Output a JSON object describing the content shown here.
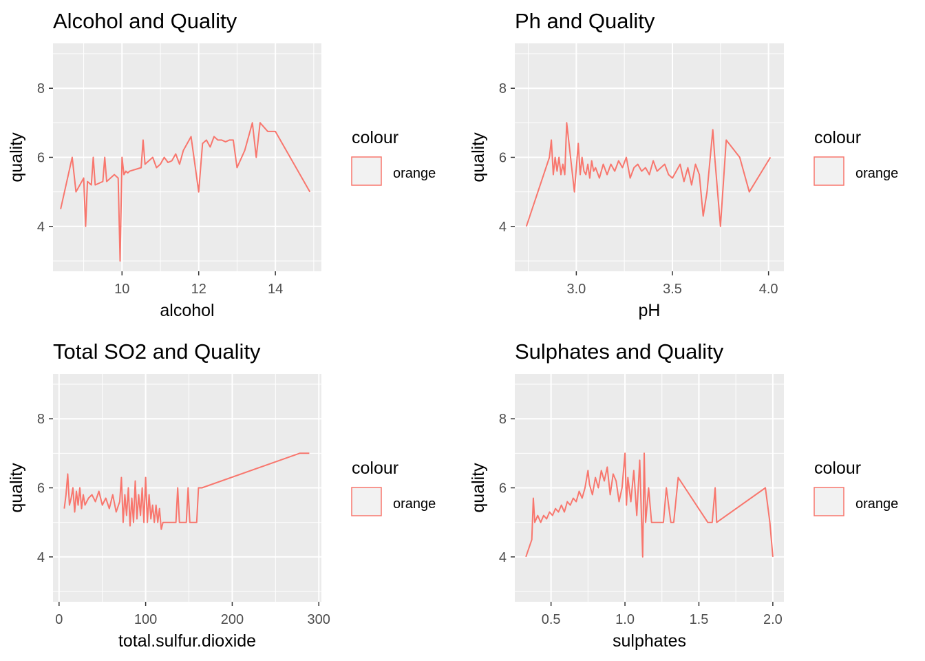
{
  "legend": {
    "title": "colour",
    "label": "orange",
    "line_color": "#F8766D"
  },
  "chart_data": [
    {
      "type": "line",
      "title": "Alcohol and Quality",
      "xlabel": "alcohol",
      "ylabel": "quality",
      "xlim": [
        8.2,
        15.2
      ],
      "ylim": [
        2.7,
        9.3
      ],
      "xticks": [
        10,
        12,
        14
      ],
      "yticks": [
        4,
        6,
        8
      ],
      "x": [
        8.4,
        8.7,
        8.8,
        9.0,
        9.05,
        9.1,
        9.2,
        9.25,
        9.3,
        9.5,
        9.55,
        9.6,
        9.8,
        9.9,
        9.95,
        10.0,
        10.05,
        10.1,
        10.15,
        10.2,
        10.5,
        10.55,
        10.6,
        10.8,
        10.9,
        11.0,
        11.1,
        11.2,
        11.3,
        11.4,
        11.5,
        11.6,
        11.8,
        12.0,
        12.1,
        12.2,
        12.3,
        12.4,
        12.5,
        12.6,
        12.7,
        12.8,
        12.9,
        13.0,
        13.2,
        13.4,
        13.5,
        13.6,
        13.8,
        14.0,
        14.9
      ],
      "values": [
        4.5,
        6.0,
        5.0,
        5.4,
        4.0,
        5.3,
        5.2,
        6.0,
        5.2,
        5.3,
        6.0,
        5.3,
        5.5,
        5.4,
        3.0,
        6.0,
        5.5,
        5.6,
        5.55,
        5.6,
        5.7,
        6.5,
        5.8,
        6.0,
        5.7,
        5.8,
        6.0,
        5.85,
        5.9,
        6.1,
        5.8,
        6.2,
        6.6,
        5.0,
        6.4,
        6.5,
        6.3,
        6.6,
        6.5,
        6.5,
        6.45,
        6.5,
        6.5,
        5.7,
        6.2,
        7.0,
        6.0,
        7.0,
        6.75,
        6.75,
        5.0
      ]
    },
    {
      "type": "line",
      "title": "Ph and Quality",
      "xlabel": "pH",
      "ylabel": "quality",
      "xlim": [
        2.68,
        4.08
      ],
      "ylim": [
        2.7,
        9.3
      ],
      "xticks": [
        3.0,
        3.5,
        4.0
      ],
      "yticks": [
        4,
        6,
        8
      ],
      "x": [
        2.74,
        2.86,
        2.87,
        2.88,
        2.89,
        2.9,
        2.91,
        2.92,
        2.93,
        2.94,
        2.95,
        2.96,
        2.97,
        2.98,
        2.99,
        3.0,
        3.01,
        3.02,
        3.03,
        3.04,
        3.05,
        3.06,
        3.07,
        3.08,
        3.09,
        3.1,
        3.12,
        3.14,
        3.16,
        3.18,
        3.2,
        3.22,
        3.24,
        3.26,
        3.28,
        3.3,
        3.32,
        3.34,
        3.36,
        3.38,
        3.4,
        3.42,
        3.44,
        3.46,
        3.48,
        3.5,
        3.52,
        3.54,
        3.56,
        3.58,
        3.6,
        3.62,
        3.64,
        3.66,
        3.68,
        3.71,
        3.72,
        3.75,
        3.78,
        3.85,
        3.9,
        4.01
      ],
      "values": [
        4.0,
        6.0,
        6.5,
        5.5,
        6.0,
        5.6,
        6.0,
        5.5,
        5.8,
        5.5,
        7.0,
        6.5,
        6.0,
        5.5,
        5.0,
        5.7,
        6.4,
        5.5,
        6.0,
        5.6,
        5.5,
        5.8,
        5.4,
        5.9,
        5.6,
        5.7,
        5.4,
        5.8,
        5.5,
        5.8,
        5.6,
        5.9,
        5.7,
        6.0,
        5.4,
        5.7,
        5.8,
        5.6,
        5.7,
        5.5,
        5.9,
        5.6,
        5.7,
        5.8,
        5.5,
        5.4,
        5.6,
        5.8,
        5.3,
        5.7,
        5.2,
        5.8,
        5.5,
        4.3,
        5.0,
        6.8,
        6.0,
        4.0,
        6.5,
        6.0,
        5.0,
        6.0
      ]
    },
    {
      "type": "line",
      "title": "Total SO2 and Quality",
      "xlabel": "total.sulfur.dioxide",
      "ylabel": "quality",
      "xlim": [
        -7,
        303
      ],
      "ylim": [
        2.7,
        9.3
      ],
      "xticks": [
        0,
        100,
        200,
        300
      ],
      "yticks": [
        4,
        6,
        8
      ],
      "x": [
        6,
        8,
        10,
        12,
        14,
        16,
        18,
        20,
        22,
        24,
        26,
        28,
        30,
        34,
        38,
        42,
        46,
        50,
        54,
        58,
        62,
        66,
        70,
        72,
        74,
        76,
        78,
        80,
        82,
        84,
        86,
        88,
        90,
        92,
        94,
        96,
        98,
        100,
        102,
        104,
        106,
        108,
        110,
        112,
        114,
        116,
        118,
        120,
        122,
        135,
        137,
        139,
        147,
        149,
        151,
        159,
        161,
        165,
        278,
        289
      ],
      "values": [
        5.4,
        5.8,
        6.4,
        5.5,
        5.7,
        6.0,
        5.3,
        5.9,
        5.5,
        6.0,
        5.4,
        5.8,
        5.5,
        5.7,
        5.8,
        5.6,
        5.9,
        5.5,
        5.7,
        5.4,
        5.8,
        5.3,
        5.6,
        6.3,
        5.0,
        5.8,
        5.2,
        6.0,
        4.9,
        5.7,
        5.0,
        6.2,
        5.1,
        5.8,
        5.2,
        6.0,
        5.0,
        6.3,
        5.0,
        5.8,
        5.1,
        5.5,
        5.0,
        5.5,
        5.0,
        5.4,
        4.8,
        5.0,
        5.0,
        5.0,
        6.0,
        5.0,
        5.0,
        6.0,
        5.0,
        5.0,
        6.0,
        6.0,
        7.0,
        7.0
      ]
    },
    {
      "type": "line",
      "title": "Sulphates and Quality",
      "xlabel": "sulphates",
      "ylabel": "quality",
      "xlim": [
        0.255,
        2.075
      ],
      "ylim": [
        2.7,
        9.3
      ],
      "xticks": [
        0.5,
        1.0,
        1.5,
        2.0
      ],
      "yticks": [
        4,
        6,
        8
      ],
      "x": [
        0.33,
        0.37,
        0.38,
        0.39,
        0.41,
        0.43,
        0.45,
        0.47,
        0.49,
        0.51,
        0.53,
        0.55,
        0.57,
        0.59,
        0.61,
        0.63,
        0.65,
        0.67,
        0.69,
        0.71,
        0.73,
        0.75,
        0.76,
        0.78,
        0.8,
        0.82,
        0.84,
        0.86,
        0.88,
        0.9,
        0.92,
        0.94,
        0.96,
        0.98,
        1.0,
        1.01,
        1.02,
        1.04,
        1.06,
        1.08,
        1.1,
        1.12,
        1.13,
        1.14,
        1.16,
        1.18,
        1.2,
        1.26,
        1.28,
        1.31,
        1.33,
        1.36,
        1.56,
        1.59,
        1.61,
        1.62,
        1.95,
        1.98,
        2.0
      ],
      "values": [
        4.0,
        4.5,
        5.7,
        5.0,
        5.2,
        5.0,
        5.2,
        5.1,
        5.3,
        5.2,
        5.4,
        5.3,
        5.5,
        5.3,
        5.6,
        5.5,
        5.7,
        5.6,
        5.9,
        5.7,
        6.0,
        6.5,
        6.1,
        5.8,
        6.3,
        6.0,
        6.5,
        6.2,
        6.6,
        5.8,
        6.4,
        6.2,
        5.6,
        6.0,
        7.0,
        5.5,
        6.3,
        5.6,
        6.5,
        5.2,
        6.8,
        4.0,
        7.0,
        5.0,
        6.0,
        5.0,
        5.0,
        5.0,
        6.0,
        5.0,
        5.0,
        6.3,
        5.0,
        5.0,
        6.0,
        5.0,
        6.0,
        5.0,
        4.0
      ]
    }
  ]
}
